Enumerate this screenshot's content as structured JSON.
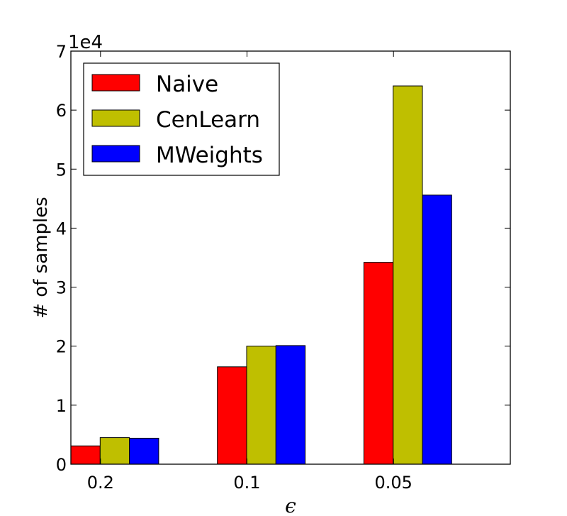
{
  "chart_data": {
    "type": "bar",
    "categories": [
      "0.2",
      "0.1",
      "0.05"
    ],
    "series": [
      {
        "name": "Naive",
        "color": "#ff0000",
        "values": [
          3100,
          16500,
          34200
        ]
      },
      {
        "name": "CenLearn",
        "color": "#bfbf00",
        "values": [
          4500,
          20000,
          64100
        ]
      },
      {
        "name": "MWeights",
        "color": "#0000ff",
        "values": [
          4400,
          20100,
          45600
        ]
      }
    ],
    "title": "",
    "xlabel": "ϵ",
    "ylabel": "# of samples",
    "y_multiplier_label": "1e4",
    "ylim": [
      0,
      70000
    ],
    "y_ticks": [
      0,
      10000,
      20000,
      30000,
      40000,
      50000,
      60000,
      70000
    ],
    "y_tick_labels": [
      "0",
      "1",
      "2",
      "3",
      "4",
      "5",
      "6",
      "7"
    ],
    "grid": false,
    "legend_position": "top-left"
  }
}
